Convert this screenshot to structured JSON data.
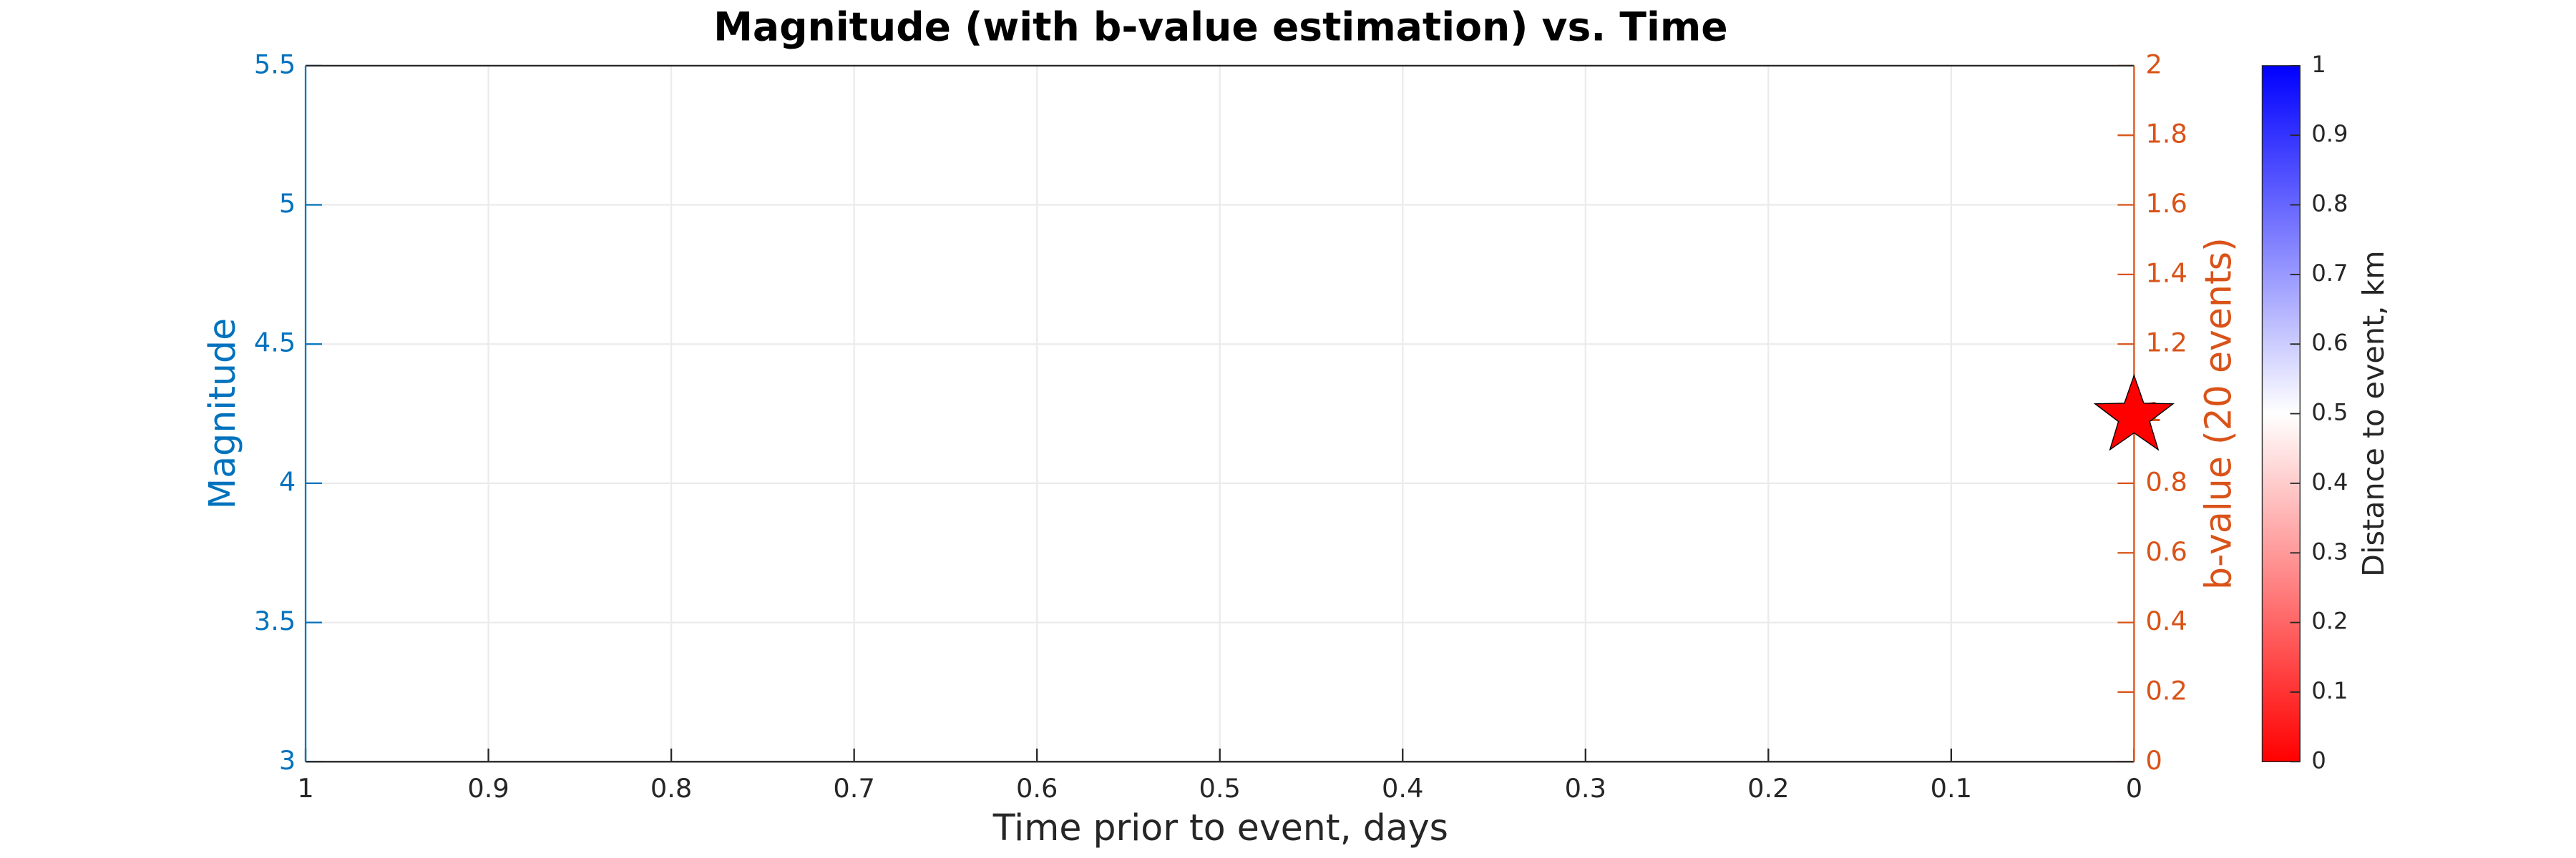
{
  "chart_data": {
    "type": "scatter",
    "title": "Magnitude (with b-value estimation) vs. Time",
    "xlabel": "Time prior to event, days",
    "ylabel": "Magnitude",
    "y2label": "b-value (20 events)",
    "xlim": [
      1,
      0
    ],
    "xticks": [
      1,
      0.9,
      0.8,
      0.7,
      0.6,
      0.5,
      0.4,
      0.3,
      0.2,
      0.1,
      0
    ],
    "ylim": [
      3,
      5.5
    ],
    "yticks": [
      3,
      3.5,
      4,
      4.5,
      5,
      5.5
    ],
    "y2lim": [
      0,
      2
    ],
    "y2ticks": [
      0,
      0.2,
      0.4,
      0.6,
      0.8,
      1,
      1.2,
      1.4,
      1.6,
      1.8,
      2
    ],
    "grid": true,
    "ycolor": "#0072bd",
    "y2color": "#d95319",
    "series": [
      {
        "color": "#ff0000",
        "marker": "star",
        "x": [
          0
        ],
        "values": [
          4.24
        ]
      }
    ],
    "colorbar": {
      "label": "Distance to event, km",
      "lim": [
        0,
        1
      ],
      "ticks": [
        0,
        0.1,
        0.2,
        0.3,
        0.4,
        0.5,
        0.6,
        0.7,
        0.8,
        0.9,
        1
      ],
      "colors": [
        "#ff0000",
        "#ffffff",
        "#0000ff"
      ]
    }
  }
}
